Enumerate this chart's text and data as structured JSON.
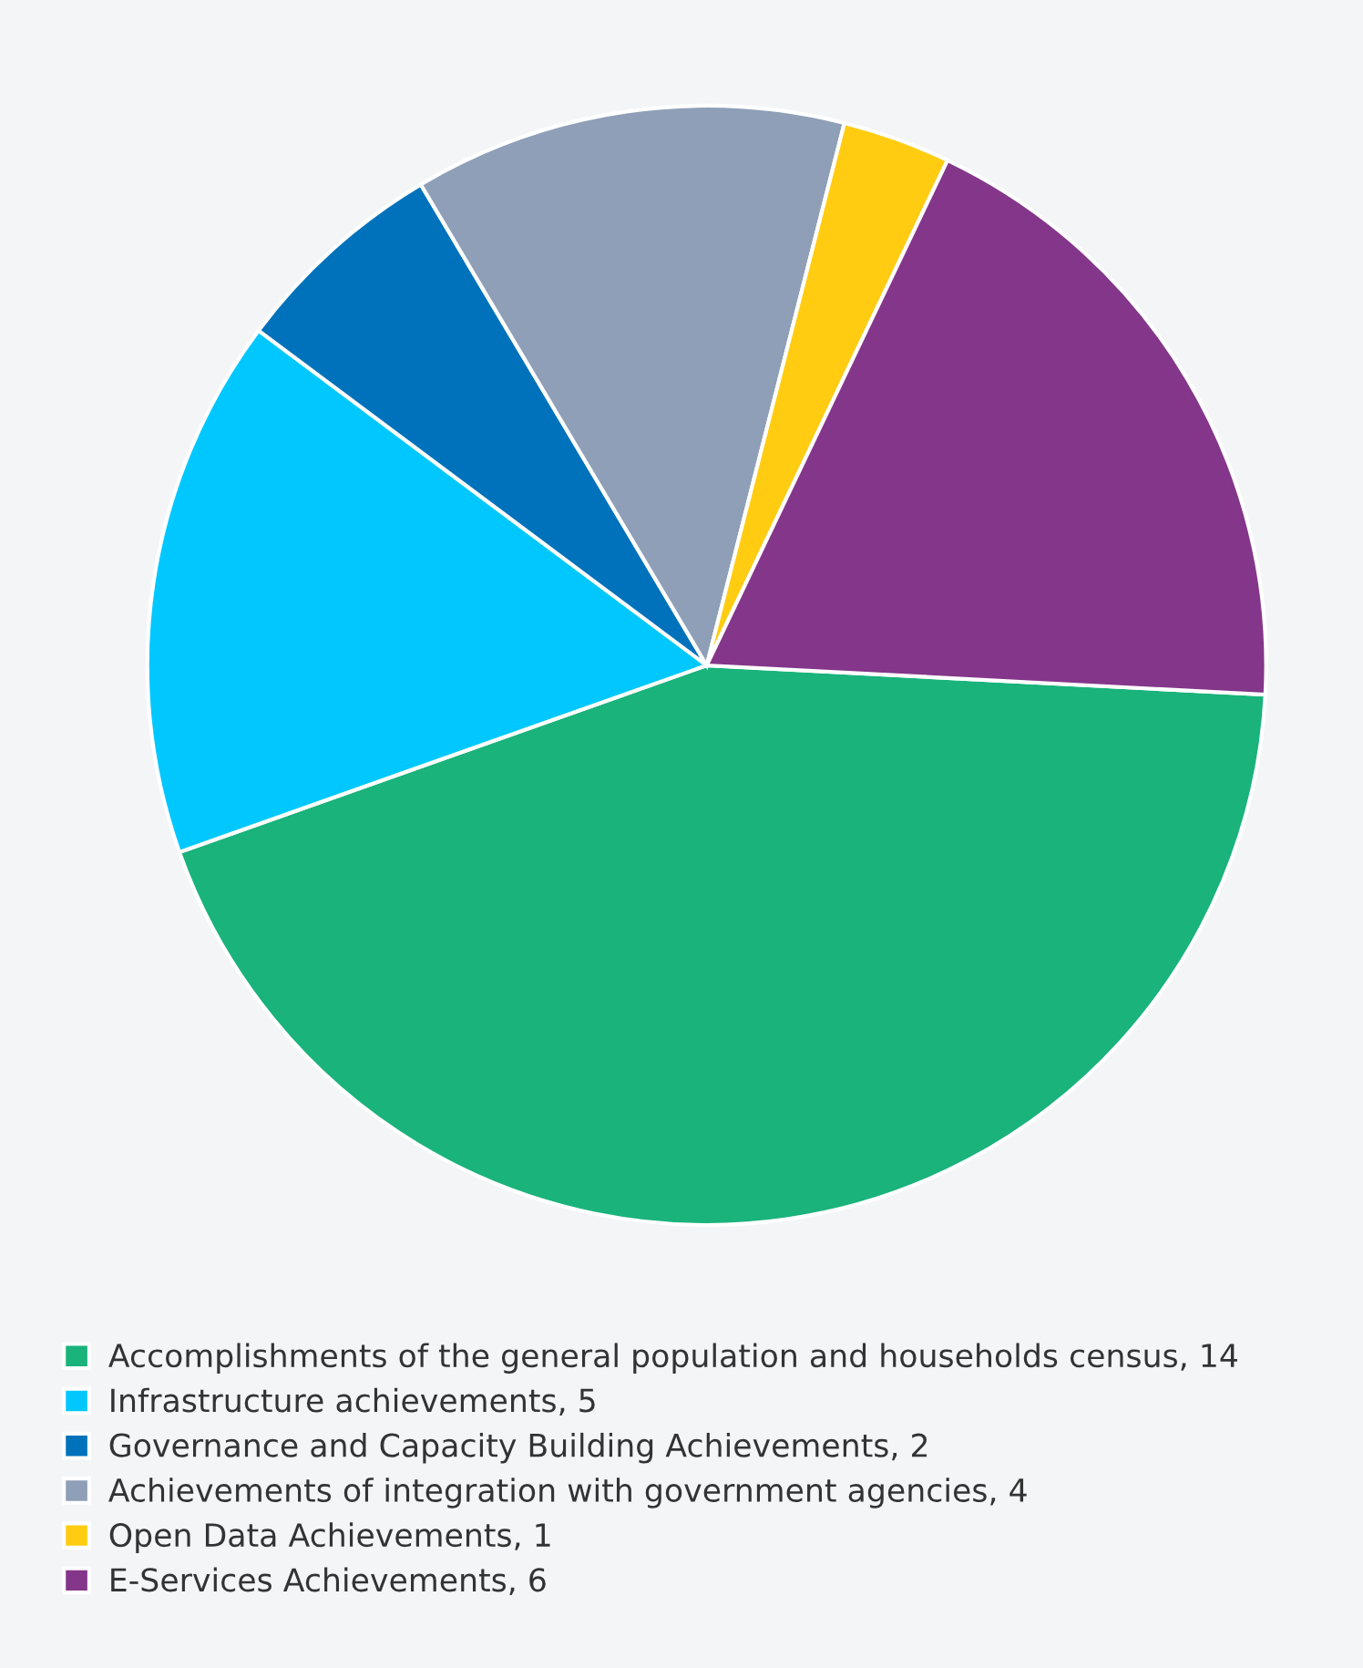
{
  "chart_data": {
    "type": "pie",
    "categories": [
      "Accomplishments of the general population and households census, 14",
      "Infrastructure achievements, 5",
      "Governance and Capacity Building Achievements, 2",
      "Achievements of integration with government agencies, 4",
      "Open Data Achievements, 1",
      "E-Services Achievements, 6"
    ],
    "values": [
      14,
      5,
      2,
      4,
      1,
      6
    ],
    "colors": [
      "#19b37b",
      "#00c8ff",
      "#0072bb",
      "#8e9fb7",
      "#ffcc11",
      "#84368a"
    ],
    "legend": "bottom left"
  }
}
